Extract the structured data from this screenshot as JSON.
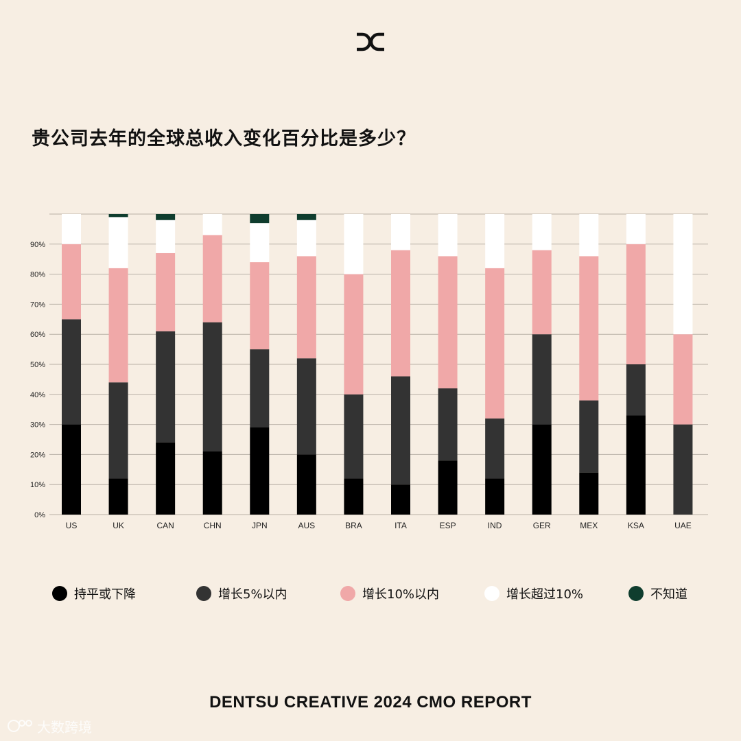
{
  "title": "贵公司去年的全球总收入变化百分比是多少？",
  "footer": "DENTSU CREATIVE 2024 CMO REPORT",
  "watermark": "大数跨境",
  "colors": {
    "background": "#f7eee3",
    "flat_or_decline": "#000000",
    "up_within_5": "#333333",
    "up_within_10": "#f0a8a8",
    "up_over_10": "#ffffff",
    "dont_know": "#0f3d2e"
  },
  "legend": [
    {
      "label": "持平或下降",
      "color": "#000000"
    },
    {
      "label": "增长5%以内",
      "color": "#333333"
    },
    {
      "label": "增长10%以内",
      "color": "#f0a8a8"
    },
    {
      "label": "增长超过10%",
      "color": "#ffffff"
    },
    {
      "label": "不知道",
      "color": "#0f3d2e"
    }
  ],
  "chart_data": {
    "type": "bar",
    "stacked": true,
    "title": "贵公司去年的全球总收入变化百分比是多少？",
    "categories": [
      "US",
      "UK",
      "CAN",
      "CHN",
      "JPN",
      "AUS",
      "BRA",
      "ITA",
      "ESP",
      "IND",
      "GER",
      "MEX",
      "KSA",
      "UAE"
    ],
    "ylim": [
      0,
      100
    ],
    "yticks": [
      "0%",
      "10%",
      "20%",
      "30%",
      "40%",
      "50%",
      "60%",
      "70%",
      "80%",
      "90%"
    ],
    "grid": true,
    "legend_position": "bottom",
    "series": [
      {
        "name": "持平或下降",
        "color": "#000000",
        "values": [
          30,
          12,
          24,
          21,
          29,
          20,
          12,
          10,
          18,
          12,
          30,
          14,
          33,
          0
        ]
      },
      {
        "name": "增长5%以内",
        "color": "#333333",
        "values": [
          35,
          32,
          37,
          43,
          26,
          32,
          28,
          36,
          24,
          20,
          30,
          24,
          17,
          30
        ]
      },
      {
        "name": "增长10%以内",
        "color": "#f0a8a8",
        "values": [
          25,
          38,
          26,
          29,
          29,
          34,
          40,
          42,
          44,
          50,
          28,
          48,
          40,
          30
        ]
      },
      {
        "name": "增长超过10%",
        "color": "#ffffff",
        "values": [
          10,
          17,
          11,
          7,
          13,
          12,
          20,
          12,
          14,
          18,
          12,
          14,
          10,
          40
        ]
      },
      {
        "name": "不知道",
        "color": "#0f3d2e",
        "values": [
          0,
          1,
          2,
          0,
          3,
          2,
          0,
          0,
          0,
          0,
          0,
          0,
          0,
          0
        ]
      }
    ]
  }
}
